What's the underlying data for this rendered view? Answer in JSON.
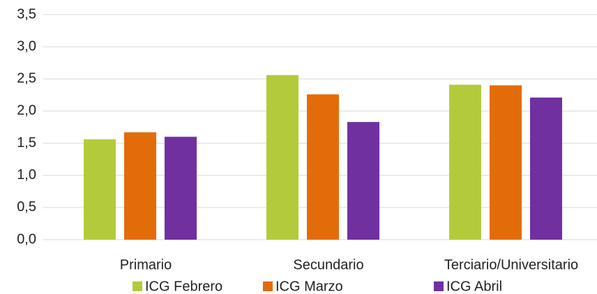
{
  "chart_data": {
    "type": "bar",
    "categories": [
      "Primario",
      "Secundario",
      "Terciario/Universitario"
    ],
    "series": [
      {
        "name": "ICG Febrero",
        "color": "#b3cb3b",
        "values": [
          1.56,
          2.56,
          2.41
        ]
      },
      {
        "name": "ICG Marzo",
        "color": "#e36c0a",
        "values": [
          1.67,
          2.26,
          2.4
        ]
      },
      {
        "name": "ICG Abril",
        "color": "#7030a0",
        "values": [
          1.6,
          1.83,
          2.21
        ]
      }
    ],
    "ylim": [
      0,
      3.5
    ],
    "yticks": [
      {
        "value": 0,
        "label": "0,0"
      },
      {
        "value": 0.5,
        "label": "0,5"
      },
      {
        "value": 1,
        "label": "1,0"
      },
      {
        "value": 1.5,
        "label": "1,5"
      },
      {
        "value": 2,
        "label": "2,0"
      },
      {
        "value": 2.5,
        "label": "2,5"
      },
      {
        "value": 3,
        "label": "3,0"
      },
      {
        "value": 3.5,
        "label": "3,5"
      }
    ],
    "grid": true,
    "legend": "bottom"
  }
}
